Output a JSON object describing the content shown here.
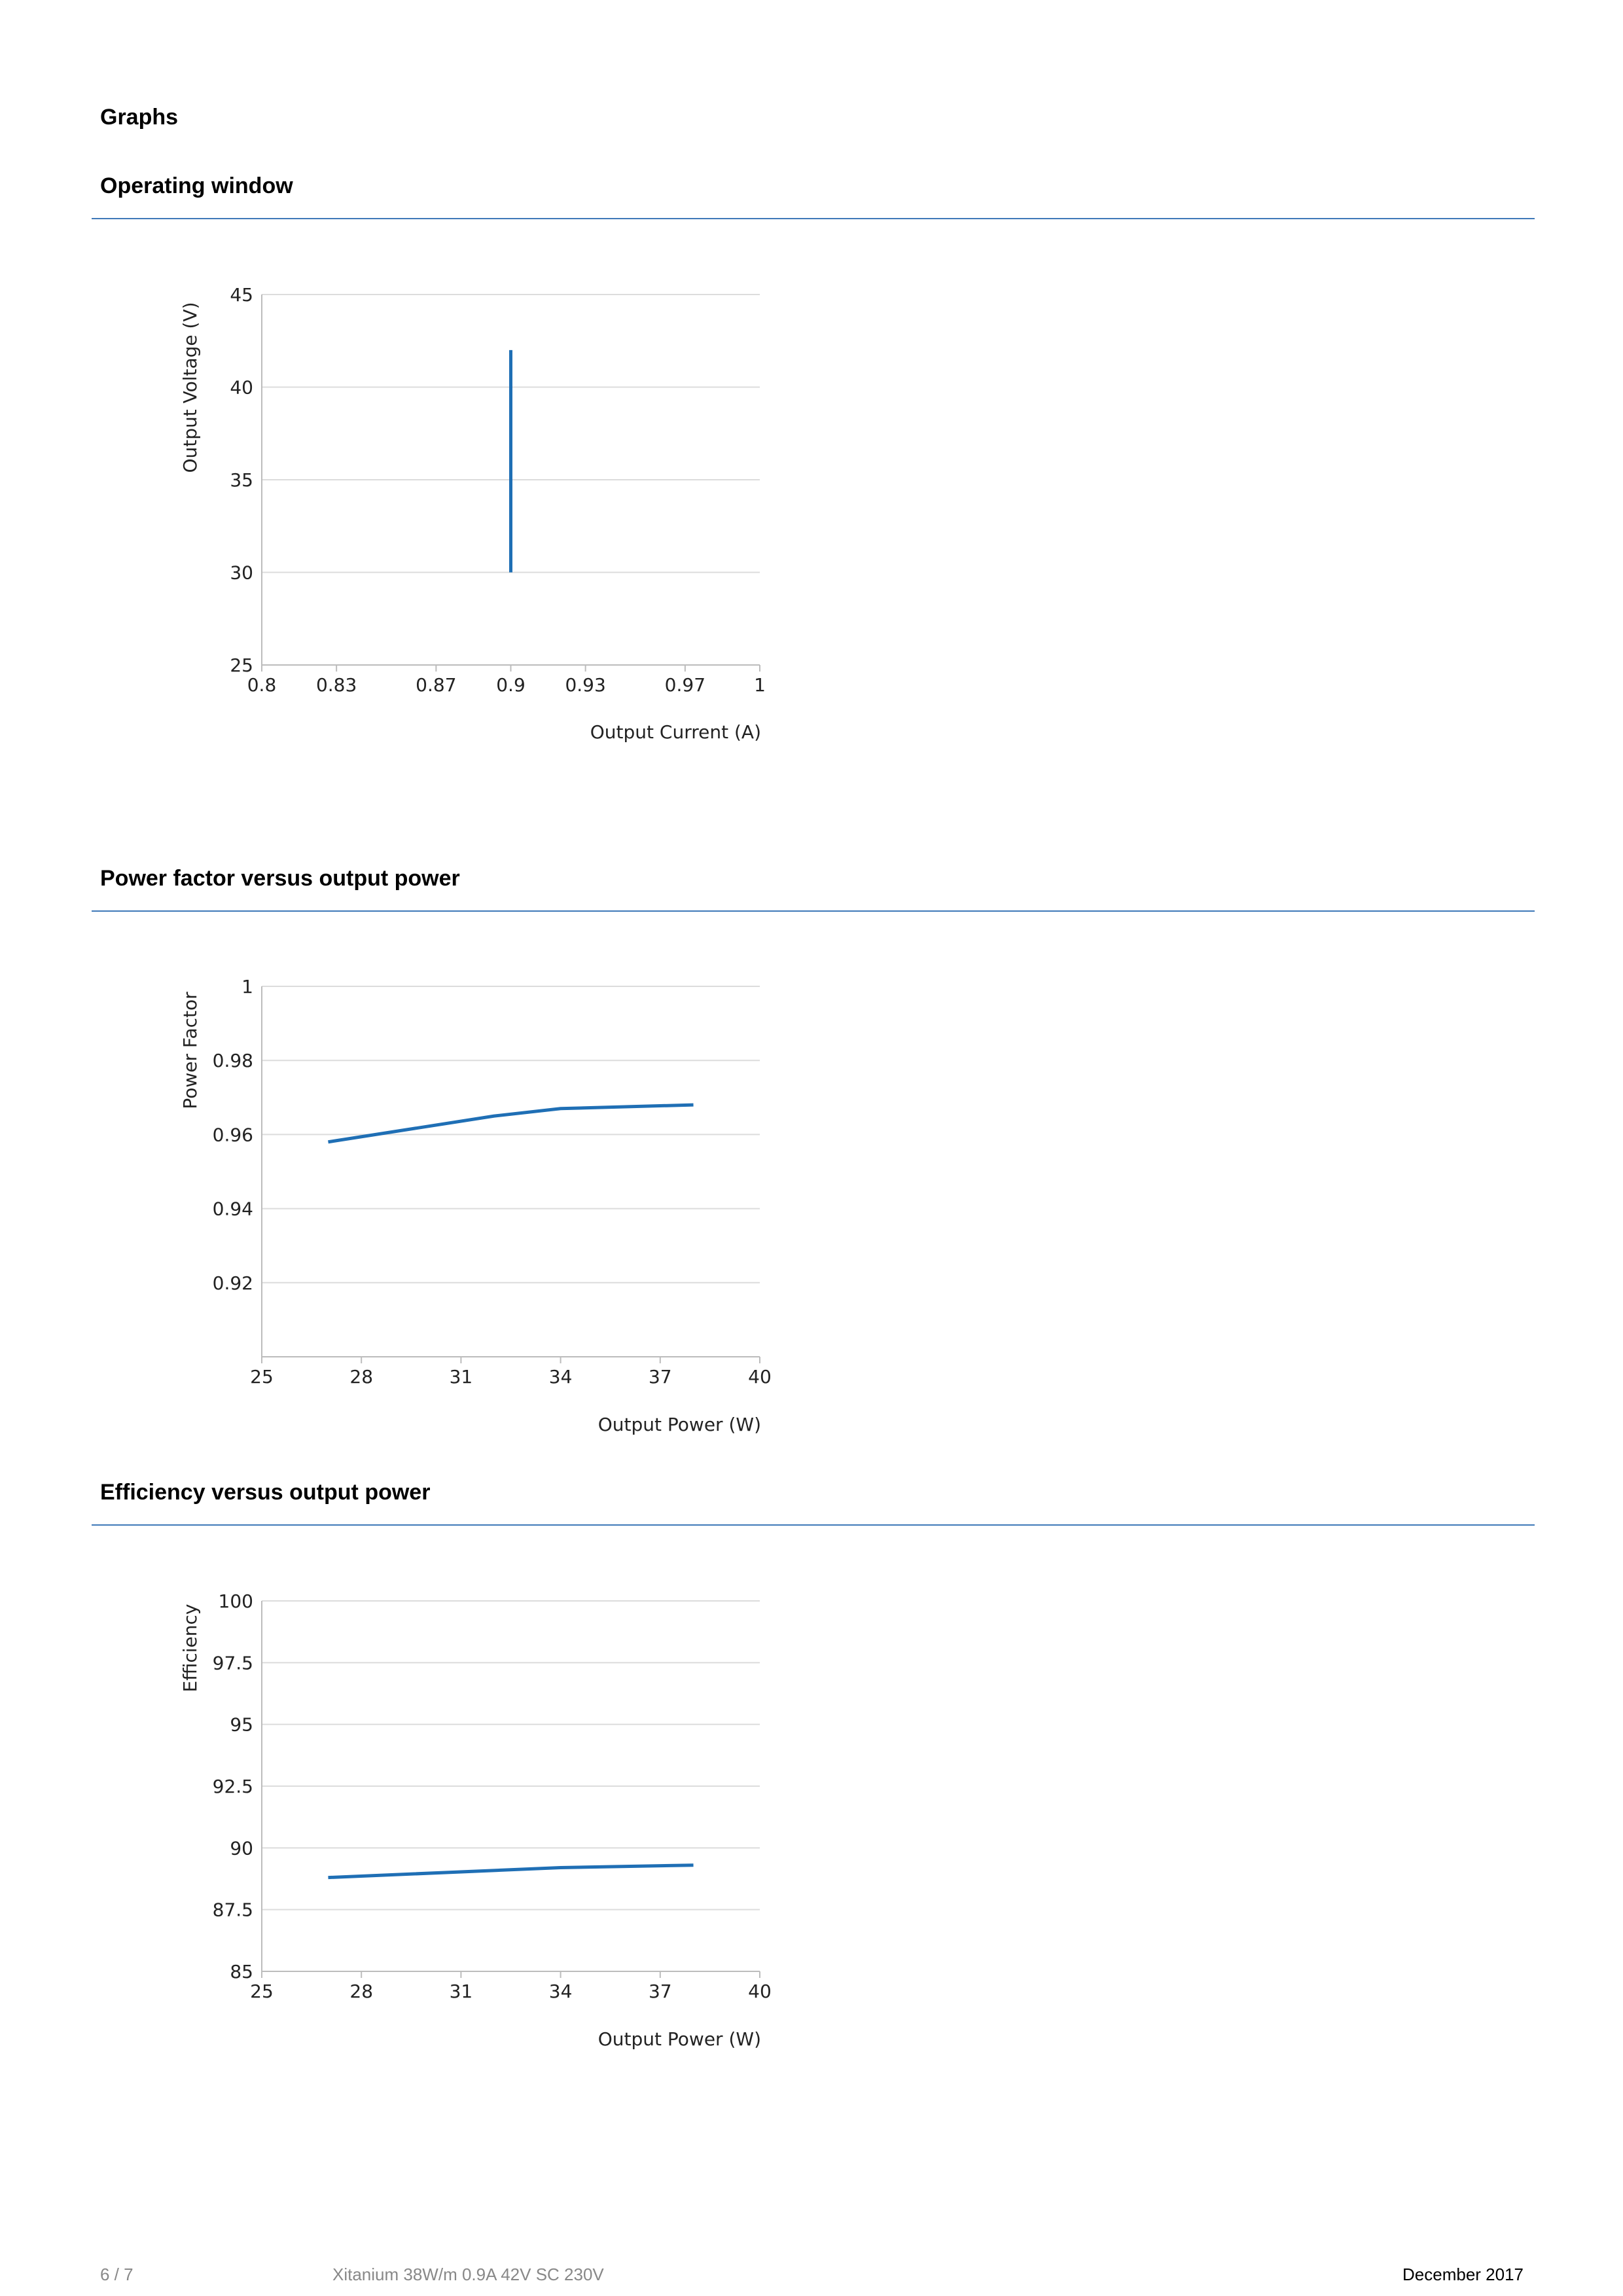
{
  "page_heading": "Graphs",
  "sections": [
    {
      "title": "Operating window"
    },
    {
      "title": "Power factor versus output power"
    },
    {
      "title": "Efficiency versus output power"
    }
  ],
  "colors": {
    "series": "#1f6fb5",
    "grid": "#dcdcdc",
    "rule": "#3f79b8"
  },
  "chart_data": [
    {
      "type": "line",
      "title": "Operating window",
      "xlabel": "Output Current (A)",
      "ylabel": "Output Voltage (V)",
      "xlim": [
        0.8,
        1
      ],
      "ylim": [
        25,
        45
      ],
      "x_ticks": [
        0.8,
        0.83,
        0.87,
        0.9,
        0.93,
        0.97,
        1
      ],
      "x_tick_labels": [
        "0.8",
        "0.83",
        "0.87",
        "0.9",
        "0.93",
        "0.97",
        "1"
      ],
      "y_ticks": [
        25,
        30,
        35,
        40,
        45
      ],
      "y_tick_labels": [
        "25",
        "30",
        "35",
        "40",
        "45"
      ],
      "grid": true,
      "series": [
        {
          "x": [
            0.9,
            0.9
          ],
          "y": [
            30,
            42
          ]
        }
      ]
    },
    {
      "type": "line",
      "title": "Power factor versus output power",
      "xlabel": "Output Power (W)",
      "ylabel": "Power Factor",
      "xlim": [
        25,
        40
      ],
      "ylim": [
        0.9,
        1
      ],
      "x_ticks": [
        25,
        28,
        31,
        34,
        37,
        40
      ],
      "x_tick_labels": [
        "25",
        "28",
        "31",
        "34",
        "37",
        "40"
      ],
      "y_ticks": [
        0.92,
        0.94,
        0.96,
        0.98,
        1
      ],
      "y_tick_labels": [
        "0.92",
        "0.94",
        "0.96",
        "0.98",
        "1"
      ],
      "grid": true,
      "series": [
        {
          "x": [
            27,
            32,
            34,
            38
          ],
          "y": [
            0.958,
            0.965,
            0.967,
            0.968
          ]
        }
      ]
    },
    {
      "type": "line",
      "title": "Efficiency versus output power",
      "xlabel": "Output Power (W)",
      "ylabel": "Efficiency",
      "xlim": [
        25,
        40
      ],
      "ylim": [
        85,
        100
      ],
      "x_ticks": [
        25,
        28,
        31,
        34,
        37,
        40
      ],
      "x_tick_labels": [
        "25",
        "28",
        "31",
        "34",
        "37",
        "40"
      ],
      "y_ticks": [
        85,
        87.5,
        90,
        92.5,
        95,
        97.5,
        100
      ],
      "y_tick_labels": [
        "85",
        "87.5",
        "90",
        "92.5",
        "95",
        "97.5",
        "100"
      ],
      "grid": true,
      "series": [
        {
          "x": [
            27,
            34,
            38
          ],
          "y": [
            88.8,
            89.2,
            89.3
          ]
        }
      ]
    }
  ],
  "footer": {
    "page": "6 / 7",
    "product": "Xitanium 38W/m  0.9A 42V SC 230V",
    "date": "December 2017"
  }
}
